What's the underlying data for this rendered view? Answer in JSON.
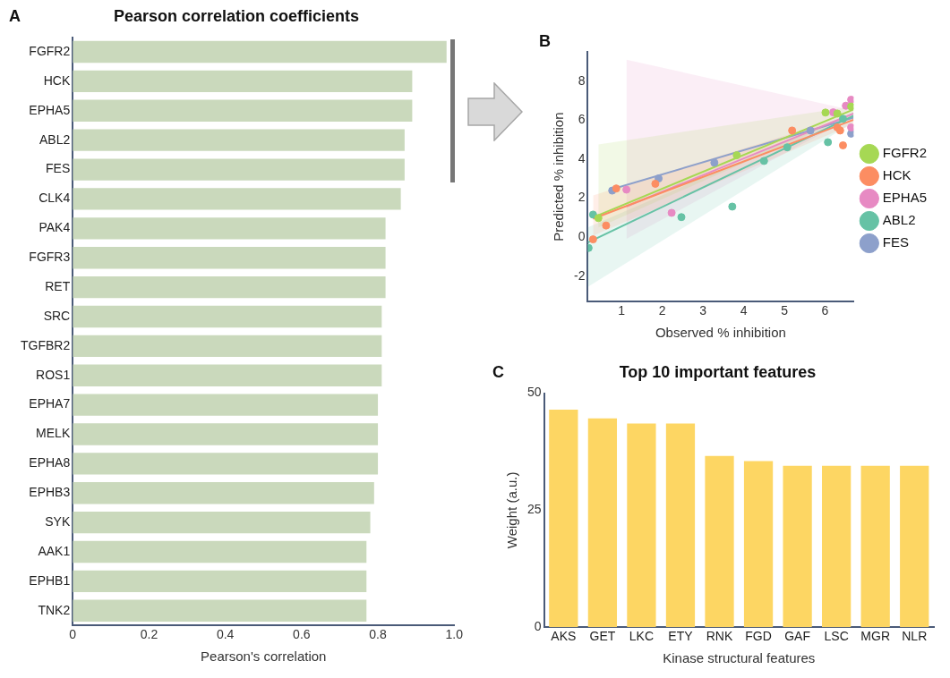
{
  "chart_data": [
    {
      "type": "bar",
      "orientation": "horizontal",
      "title": "Pearson correlation coefficients",
      "xlabel": "Pearson's correlation",
      "annotations": [
        "A"
      ],
      "color": "#cad9bc",
      "categories": [
        "FGFR2",
        "HCK",
        "EPHA5",
        "ABL2",
        "FES",
        "CLK4",
        "PAK4",
        "FGFR3",
        "RET",
        "SRC",
        "TGFBR2",
        "ROS1",
        "EPHA7",
        "MELK",
        "EPHA8",
        "EPHB3",
        "SYK",
        "AAK1",
        "EPHB1",
        "TNK2"
      ],
      "values": [
        0.98,
        0.89,
        0.89,
        0.87,
        0.87,
        0.86,
        0.82,
        0.82,
        0.82,
        0.81,
        0.81,
        0.81,
        0.8,
        0.8,
        0.8,
        0.79,
        0.78,
        0.77,
        0.77,
        0.77
      ],
      "xlim": [
        0,
        1
      ],
      "xticks": [
        0,
        0.2,
        0.4,
        0.6,
        0.8,
        {
          "value": 1,
          "label": "1.0"
        }
      ]
    },
    {
      "type": "scatter",
      "xlabel": "Observed % inhibition",
      "ylabel": "Predicted % inhibition",
      "annotations": [
        "B"
      ],
      "legend": "right",
      "marker": "circle",
      "xlim": [
        0.17,
        6.7
      ],
      "xticks": [
        1,
        2,
        3,
        4,
        5,
        6
      ],
      "ylim": [
        -3.3,
        9.5
      ],
      "yticks": [
        -2,
        0,
        2,
        4,
        6,
        8
      ],
      "series": [
        {
          "type": "line",
          "marker": "none",
          "color": "#fc8d62",
          "x": [
            0.3,
            6.7
          ],
          "values": [
            0.95,
            6.02
          ],
          "lower": [
            0.08,
            5.8
          ],
          "upper": [
            2.14,
            6.3
          ]
        },
        {
          "type": "line",
          "marker": "none",
          "color": "#a6d854",
          "x": [
            0.43,
            6.7
          ],
          "values": [
            1.13,
            6.55
          ],
          "lower": [
            0.5,
            6.3
          ],
          "upper": [
            4.75,
            6.7
          ]
        },
        {
          "type": "line",
          "marker": "none",
          "color": "#66c2a5",
          "x": [
            0.17,
            6.7
          ],
          "values": [
            -0.27,
            6.23
          ],
          "lower": [
            -2.55,
            5.9
          ],
          "upper": [
            0.5,
            6.4
          ]
        },
        {
          "type": "line",
          "marker": "none",
          "color": "#e78ac3",
          "x": [
            1.12,
            6.7
          ],
          "values": [
            1.58,
            6.34
          ],
          "lower": [
            -0.08,
            6.2
          ],
          "upper": [
            9.1,
            6.5
          ]
        },
        {
          "type": "line",
          "marker": "none",
          "color": "#8da0cb",
          "x": [
            0.77,
            6.7
          ],
          "values": [
            2.46,
            6.13
          ]
        },
        {
          "name": "FGFR2",
          "color": "#a6d854",
          "x": [
            0.43,
            3.83,
            6.01,
            6.3,
            6.64
          ],
          "values": [
            0.98,
            4.2,
            6.39,
            6.34,
            6.7
          ]
        },
        {
          "name": "HCK",
          "color": "#fc8d62",
          "x": [
            0.3,
            0.62,
            0.87,
            1.83,
            5.19,
            6.3,
            6.37,
            6.44
          ],
          "values": [
            -0.11,
            0.6,
            2.5,
            2.74,
            5.47,
            5.63,
            5.47,
            4.71
          ]
        },
        {
          "name": "EPHA5",
          "color": "#e78ac3",
          "x": [
            1.12,
            2.23,
            6.2,
            6.51,
            6.64,
            6.64
          ],
          "values": [
            2.44,
            1.25,
            6.4,
            6.74,
            7.05,
            5.63
          ]
        },
        {
          "name": "ABL2",
          "color": "#66c2a5",
          "x": [
            0.19,
            0.3,
            2.47,
            3.72,
            4.5,
            5.07,
            6.07,
            6.44
          ],
          "values": [
            -0.55,
            1.16,
            1.03,
            1.57,
            3.91,
            4.61,
            4.87,
            6.07
          ]
        },
        {
          "name": "FES",
          "color": "#8da0cb",
          "x": [
            0.77,
            1.91,
            3.28,
            5.64,
            6.44,
            6.64
          ],
          "values": [
            2.39,
            3.01,
            3.82,
            5.47,
            null,
            5.31
          ]
        }
      ]
    },
    {
      "type": "bar",
      "title": "Top 10 important features",
      "xlabel": "Kinase structural features",
      "ylabel": "Weight (a.u.)",
      "annotations": [
        "C"
      ],
      "color": "#fdd663",
      "categories": [
        "AKS",
        "GET",
        "LKC",
        "ETY",
        "RNK",
        "FGD",
        "GAF",
        "LSC",
        "MGR",
        "NLR"
      ],
      "values": [
        46.5,
        44.6,
        43.5,
        43.5,
        36.6,
        35.5,
        34.5,
        34.5,
        34.5,
        34.5
      ],
      "ylim": [
        0,
        50
      ],
      "yticks": [
        0,
        25,
        50
      ]
    }
  ]
}
